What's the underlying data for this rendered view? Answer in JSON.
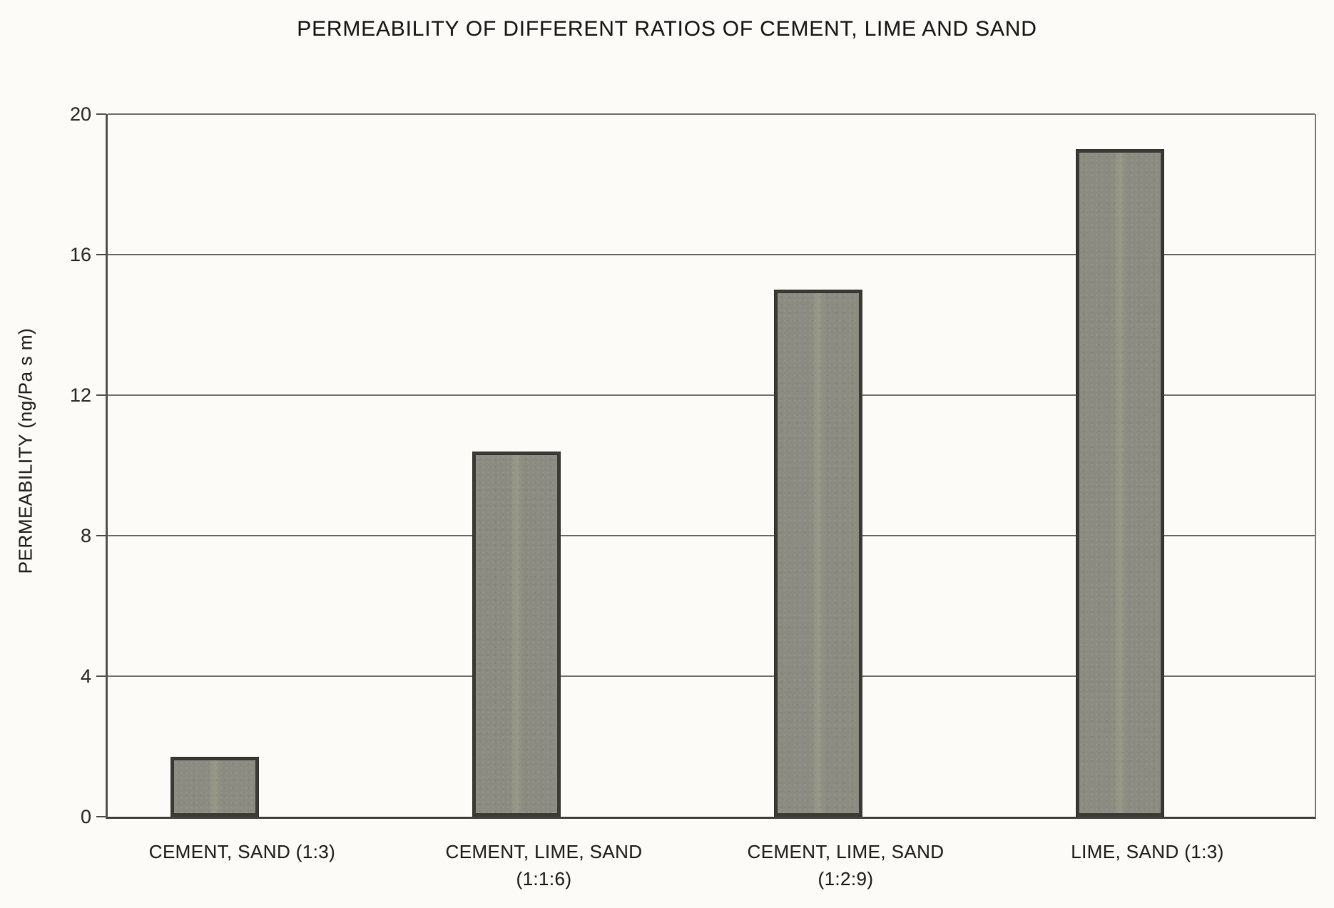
{
  "chart_data": {
    "type": "bar",
    "title": "PERMEABILITY OF DIFFERENT RATIOS OF CEMENT, LIME AND SAND",
    "xlabel": "",
    "ylabel": "PERMEABILITY (ng/Pa s m)",
    "categories": [
      "CEMENT, SAND (1:3)",
      "CEMENT, LIME, SAND\n(1:1:6)",
      "CEMENT, LIME, SAND\n(1:2:9)",
      "LIME, SAND (1:3)"
    ],
    "values": [
      1.7,
      10.4,
      15,
      19
    ],
    "ylim": [
      0,
      20
    ],
    "yticks": [
      0,
      4,
      8,
      12,
      16,
      20
    ],
    "grid": true,
    "legend_position": "none",
    "bar_fill_color": "#8b8b82",
    "bar_border_color": "#3b3b35",
    "gridline_color": "#73736b",
    "background_color": "#fcfbf8"
  }
}
